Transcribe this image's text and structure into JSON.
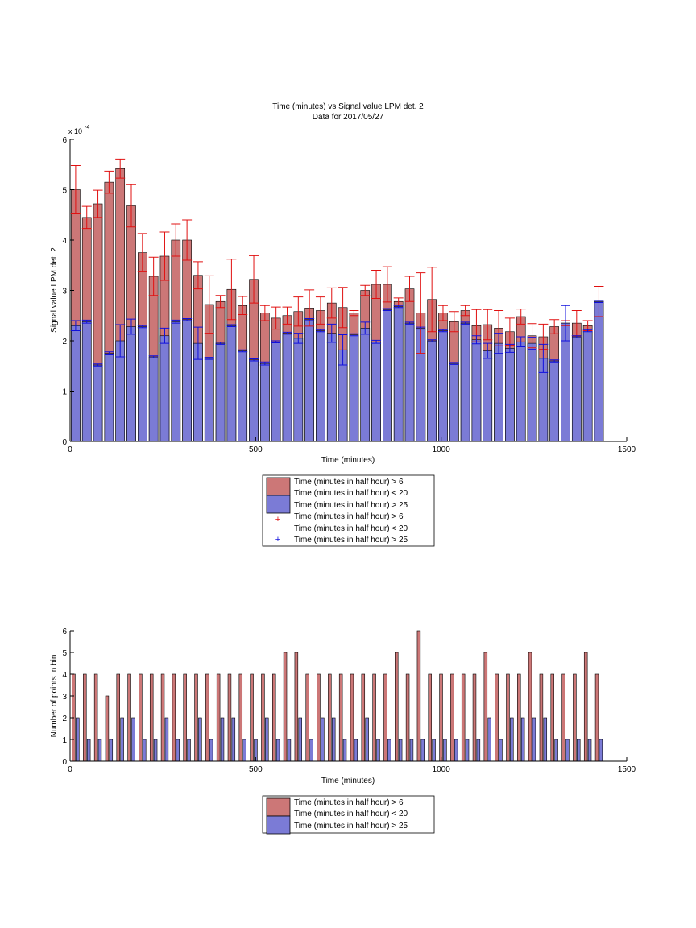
{
  "colors": {
    "background": "#ffffff",
    "axes": "#000000",
    "red_fill": "#cc7777",
    "blue_fill": "#7b7bd6",
    "red_marker": "#e01010",
    "blue_marker": "#1010dd",
    "bar_edge": "#000000"
  },
  "chart_data": [
    {
      "type": "bar",
      "title_line1": "Time (minutes) vs Signal value LPM det. 2",
      "title_line2": "Data for 2017/05/27",
      "xlabel": "Time (minutes)",
      "ylabel": "Signal value LPM det. 2",
      "y_exponent_label": "x 10",
      "y_exponent": "-4",
      "xlim": [
        0,
        1500
      ],
      "ylim": [
        0,
        6
      ],
      "xticks": [
        "0",
        "500",
        "1000",
        "1500"
      ],
      "xtick_values": [
        0,
        500,
        1000,
        1500
      ],
      "yticks": [
        "0",
        "1",
        "2",
        "3",
        "4",
        "5",
        "6"
      ],
      "ytick_values": [
        0,
        1,
        2,
        3,
        4,
        5,
        6
      ],
      "grid": false,
      "legend_position": "below",
      "legend_labels": [
        "Time (minutes in half hour) > 6",
        "Time (minutes in half hour) < 20",
        "Time (minutes in half hour) > 25",
        "Time (minutes in half hour) > 6",
        "Time (minutes in half hour) < 20",
        "Time (minutes in half hour) > 25"
      ],
      "x": [
        15,
        45,
        75,
        105,
        135,
        165,
        195,
        225,
        255,
        285,
        315,
        345,
        375,
        405,
        435,
        465,
        495,
        525,
        555,
        585,
        615,
        645,
        675,
        705,
        735,
        765,
        795,
        825,
        855,
        885,
        915,
        945,
        975,
        1005,
        1035,
        1065,
        1095,
        1125,
        1155,
        1185,
        1215,
        1245,
        1275,
        1305,
        1335,
        1365,
        1395,
        1425
      ],
      "series": [
        {
          "name": "Time (minutes in half hour) > 6 / Time (minutes in half hour) < 20",
          "values": [
            5.0,
            4.45,
            4.72,
            5.15,
            5.42,
            4.68,
            3.75,
            3.28,
            3.68,
            4.0,
            4.0,
            3.3,
            2.72,
            2.78,
            3.02,
            2.7,
            3.22,
            2.55,
            2.45,
            2.5,
            2.58,
            2.65,
            2.6,
            2.75,
            2.66,
            2.55,
            3.0,
            3.12,
            3.12,
            2.78,
            3.03,
            2.55,
            2.82,
            2.55,
            2.38,
            2.6,
            2.3,
            2.32,
            2.25,
            2.18,
            2.48,
            2.1,
            2.08,
            2.28,
            2.35,
            2.35,
            2.3,
            2.78
          ],
          "error": [
            0.48,
            0.22,
            0.27,
            0.22,
            0.19,
            0.42,
            0.38,
            0.38,
            0.48,
            0.32,
            0.4,
            0.27,
            0.57,
            0.12,
            0.6,
            0.18,
            0.47,
            0.15,
            0.22,
            0.17,
            0.29,
            0.36,
            0.27,
            0.3,
            0.4,
            0.05,
            0.1,
            0.28,
            0.35,
            0.07,
            0.25,
            0.8,
            0.64,
            0.15,
            0.2,
            0.1,
            0.32,
            0.3,
            0.35,
            0.27,
            0.15,
            0.24,
            0.25,
            0.14,
            0.05,
            0.25,
            0.1,
            0.3
          ]
        },
        {
          "name": "Time (minutes in half hour) > 25",
          "values": [
            2.3,
            2.38,
            1.52,
            1.75,
            2.0,
            2.28,
            2.28,
            1.68,
            2.1,
            2.38,
            2.42,
            1.95,
            1.65,
            1.95,
            2.3,
            1.8,
            1.62,
            1.55,
            1.98,
            2.15,
            2.05,
            2.42,
            2.2,
            2.15,
            1.82,
            2.12,
            2.25,
            1.98,
            2.62,
            2.68,
            2.35,
            2.25,
            2.0,
            2.2,
            1.55,
            2.35,
            2.02,
            1.8,
            1.95,
            1.85,
            1.98,
            1.95,
            1.65,
            1.6,
            2.35,
            2.08,
            2.2,
            2.78
          ],
          "error": [
            0.1,
            0.03,
            0.02,
            0.03,
            0.32,
            0.15,
            0.02,
            0.02,
            0.15,
            0.03,
            0.02,
            0.32,
            0.02,
            0.02,
            0.02,
            0.02,
            0.02,
            0.03,
            0.02,
            0.02,
            0.1,
            0.02,
            0.02,
            0.18,
            0.3,
            0.02,
            0.12,
            0.03,
            0.02,
            0.02,
            0.02,
            0.02,
            0.02,
            0.02,
            0.02,
            0.02,
            0.08,
            0.15,
            0.2,
            0.08,
            0.1,
            0.12,
            0.28,
            0.02,
            0.35,
            0.02,
            0.02,
            0.02
          ]
        }
      ]
    },
    {
      "type": "bar",
      "xlabel": "Time (minutes)",
      "ylabel": "Number of points in bin",
      "xlim": [
        0,
        1500
      ],
      "ylim": [
        0,
        6
      ],
      "xticks": [
        "0",
        "500",
        "1000",
        "1500"
      ],
      "xtick_values": [
        0,
        500,
        1000,
        1500
      ],
      "yticks": [
        "0",
        "1",
        "2",
        "3",
        "4",
        "5",
        "6"
      ],
      "ytick_values": [
        0,
        1,
        2,
        3,
        4,
        5,
        6
      ],
      "grid": false,
      "legend_position": "below",
      "legend_labels": [
        "Time (minutes in half hour) > 6",
        "Time (minutes in half hour) < 20",
        "Time (minutes in half hour) > 25"
      ],
      "x": [
        15,
        45,
        75,
        105,
        135,
        165,
        195,
        225,
        255,
        285,
        315,
        345,
        375,
        405,
        435,
        465,
        495,
        525,
        555,
        585,
        615,
        645,
        675,
        705,
        735,
        765,
        795,
        825,
        855,
        885,
        915,
        945,
        975,
        1005,
        1035,
        1065,
        1095,
        1125,
        1155,
        1185,
        1215,
        1245,
        1275,
        1305,
        1335,
        1365,
        1395,
        1425
      ],
      "series": [
        {
          "name": "Time (minutes in half hour) > 6 / Time (minutes in half hour) < 20",
          "values": [
            4,
            4,
            4,
            3,
            4,
            4,
            4,
            4,
            4,
            4,
            4,
            4,
            4,
            4,
            4,
            4,
            4,
            4,
            4,
            5,
            5,
            4,
            4,
            4,
            4,
            4,
            4,
            4,
            4,
            5,
            4,
            6,
            4,
            4,
            4,
            4,
            4,
            5,
            4,
            4,
            4,
            5,
            4,
            4,
            4,
            4,
            5,
            4
          ]
        },
        {
          "name": "Time (minutes in half hour) > 25",
          "values": [
            2,
            1,
            1,
            1,
            2,
            2,
            1,
            1,
            2,
            1,
            1,
            2,
            1,
            2,
            2,
            1,
            1,
            2,
            1,
            1,
            2,
            1,
            2,
            2,
            1,
            1,
            2,
            1,
            1,
            1,
            1,
            1,
            1,
            1,
            1,
            1,
            1,
            2,
            1,
            2,
            2,
            2,
            2,
            1,
            1,
            1,
            1,
            1
          ]
        }
      ]
    }
  ]
}
